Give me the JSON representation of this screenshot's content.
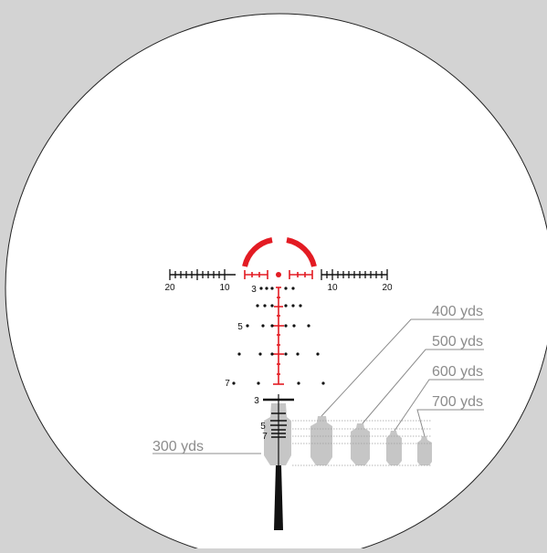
{
  "colors": {
    "background": "#d3d3d3",
    "lens": "#ffffff",
    "reticle_red": "#e31b23",
    "ink": "#111111",
    "target_gray": "#c6c6c6",
    "label_gray": "#8c8c8c"
  },
  "scale": {
    "left_labels": [
      "20",
      "10"
    ],
    "right_labels": [
      "10",
      "20"
    ]
  },
  "holdover_labels": [
    "3",
    "5",
    "7"
  ],
  "lower_stadia_labels": [
    "3",
    "5",
    "7"
  ],
  "callouts": [
    {
      "id": "300",
      "label": "300 yds"
    },
    {
      "id": "400",
      "label": "400 yds"
    },
    {
      "id": "500",
      "label": "500 yds"
    },
    {
      "id": "600",
      "label": "600 yds"
    },
    {
      "id": "700",
      "label": "700 yds"
    }
  ]
}
